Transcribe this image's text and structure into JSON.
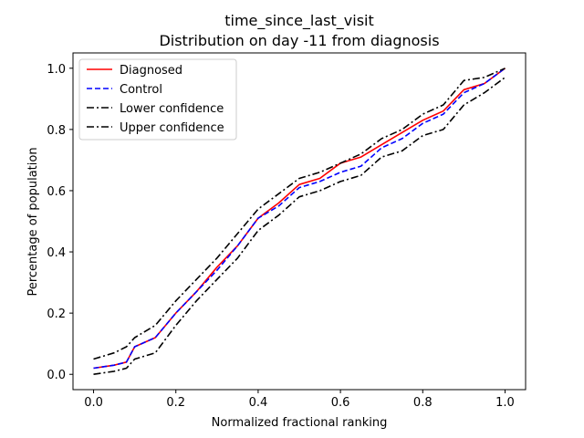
{
  "chart_data": {
    "type": "line",
    "title": "time_since_last_visit",
    "subtitle": "Distribution on day -11 from diagnosis",
    "xlabel": "Normalized fractional ranking",
    "ylabel": "Percentage of population",
    "xlim": [
      -0.05,
      1.05
    ],
    "ylim": [
      -0.05,
      1.05
    ],
    "xticks": [
      "0.0",
      "0.2",
      "0.4",
      "0.6",
      "0.8",
      "1.0"
    ],
    "yticks": [
      "0.0",
      "0.2",
      "0.4",
      "0.6",
      "0.8",
      "1.0"
    ],
    "grid": false,
    "legend_position": "upper-left",
    "x": [
      0.0,
      0.05,
      0.08,
      0.1,
      0.15,
      0.2,
      0.25,
      0.3,
      0.35,
      0.4,
      0.45,
      0.5,
      0.55,
      0.6,
      0.65,
      0.7,
      0.75,
      0.8,
      0.85,
      0.9,
      0.95,
      1.0
    ],
    "series": [
      {
        "name": "Diagnosed",
        "color": "#ff0000",
        "style": "solid",
        "values": [
          0.02,
          0.03,
          0.04,
          0.09,
          0.12,
          0.2,
          0.27,
          0.35,
          0.42,
          0.51,
          0.56,
          0.62,
          0.64,
          0.69,
          0.71,
          0.75,
          0.79,
          0.83,
          0.86,
          0.93,
          0.95,
          1.0
        ]
      },
      {
        "name": "Control",
        "color": "#0000ff",
        "style": "dashed",
        "values": [
          0.02,
          0.03,
          0.04,
          0.09,
          0.12,
          0.2,
          0.27,
          0.34,
          0.42,
          0.51,
          0.55,
          0.61,
          0.63,
          0.66,
          0.68,
          0.74,
          0.77,
          0.82,
          0.85,
          0.92,
          0.95,
          1.0
        ]
      },
      {
        "name": "Lower confidence",
        "color": "#000000",
        "style": "dashdot",
        "values": [
          0.0,
          0.01,
          0.02,
          0.05,
          0.07,
          0.16,
          0.24,
          0.31,
          0.38,
          0.47,
          0.52,
          0.58,
          0.6,
          0.63,
          0.65,
          0.71,
          0.73,
          0.78,
          0.8,
          0.88,
          0.92,
          0.97
        ]
      },
      {
        "name": "Upper confidence",
        "color": "#000000",
        "style": "dashdot",
        "values": [
          0.05,
          0.07,
          0.09,
          0.12,
          0.16,
          0.24,
          0.31,
          0.38,
          0.46,
          0.54,
          0.59,
          0.64,
          0.66,
          0.69,
          0.72,
          0.77,
          0.8,
          0.85,
          0.88,
          0.96,
          0.97,
          1.0
        ]
      }
    ]
  }
}
